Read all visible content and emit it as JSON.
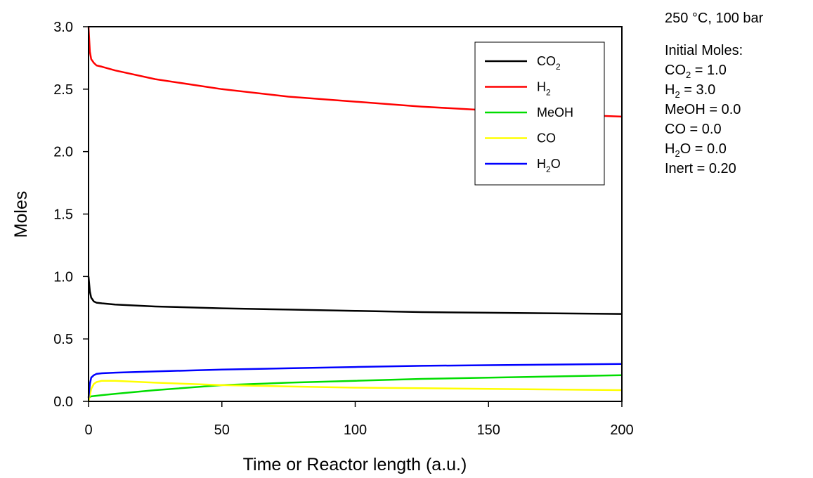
{
  "chart_data": {
    "type": "line",
    "xlabel": "Time or Reactor length (a.u.)",
    "ylabel": "Moles",
    "xlim": [
      0,
      200
    ],
    "ylim": [
      0,
      3.0
    ],
    "x_ticks": [
      "0",
      "50",
      "100",
      "150",
      "200"
    ],
    "y_ticks": [
      "0.0",
      "0.5",
      "1.0",
      "1.5",
      "2.0",
      "2.5",
      "3.0"
    ],
    "grid": false,
    "legend_position": "top-right",
    "series": [
      {
        "name": "CO2",
        "name_main": "CO",
        "name_sub": "2",
        "color": "#000000",
        "x": [
          0,
          0.5,
          1,
          2,
          3,
          5,
          10,
          25,
          50,
          75,
          100,
          125,
          150,
          175,
          200
        ],
        "y": [
          1.0,
          0.88,
          0.83,
          0.8,
          0.79,
          0.785,
          0.775,
          0.76,
          0.745,
          0.735,
          0.725,
          0.715,
          0.71,
          0.705,
          0.7
        ]
      },
      {
        "name": "H2",
        "name_main": "H",
        "name_sub": "2",
        "color": "#ff0000",
        "x": [
          0,
          0.5,
          1,
          2,
          3,
          5,
          10,
          25,
          50,
          75,
          100,
          125,
          150,
          175,
          200
        ],
        "y": [
          3.0,
          2.8,
          2.74,
          2.71,
          2.69,
          2.68,
          2.65,
          2.58,
          2.5,
          2.44,
          2.4,
          2.36,
          2.33,
          2.3,
          2.28
        ]
      },
      {
        "name": "MeOH",
        "name_main": "MeOH",
        "name_sub": "",
        "color": "#00dd00",
        "x": [
          0,
          1,
          5,
          10,
          25,
          50,
          75,
          100,
          125,
          150,
          175,
          200
        ],
        "y": [
          0.03,
          0.04,
          0.05,
          0.06,
          0.09,
          0.13,
          0.15,
          0.165,
          0.18,
          0.19,
          0.2,
          0.21
        ]
      },
      {
        "name": "CO",
        "name_main": "CO",
        "name_sub": "",
        "color": "#ffff00",
        "x": [
          0,
          1,
          2,
          3,
          5,
          10,
          25,
          50,
          75,
          100,
          125,
          150,
          175,
          200
        ],
        "y": [
          0.0,
          0.1,
          0.14,
          0.155,
          0.165,
          0.165,
          0.15,
          0.13,
          0.12,
          0.11,
          0.105,
          0.1,
          0.095,
          0.09
        ]
      },
      {
        "name": "H2O",
        "name_main": "H",
        "name_sub": "2",
        "name_tail": "O",
        "color": "#0000ff",
        "x": [
          0,
          0.5,
          1,
          2,
          3,
          5,
          10,
          25,
          50,
          75,
          100,
          125,
          150,
          175,
          200
        ],
        "y": [
          0.03,
          0.14,
          0.19,
          0.21,
          0.22,
          0.225,
          0.23,
          0.24,
          0.255,
          0.265,
          0.275,
          0.285,
          0.29,
          0.295,
          0.3
        ]
      }
    ]
  },
  "annotations": {
    "conditions": "250 °C, 100 bar",
    "initial_header": "Initial Moles:",
    "lines": [
      {
        "main": "CO",
        "sub": "2",
        "tail": "",
        "value": " = 1.0"
      },
      {
        "main": "H",
        "sub": "2",
        "tail": "",
        "value": " = 3.0"
      },
      {
        "main": "MeOH",
        "sub": "",
        "tail": "",
        "value": " = 0.0"
      },
      {
        "main": "CO",
        "sub": "",
        "tail": "",
        "value": " = 0.0"
      },
      {
        "main": "H",
        "sub": "2",
        "tail": "O",
        "value": " = 0.0"
      },
      {
        "main": "Inert",
        "sub": "",
        "tail": "",
        "value": " = 0.20"
      }
    ]
  }
}
